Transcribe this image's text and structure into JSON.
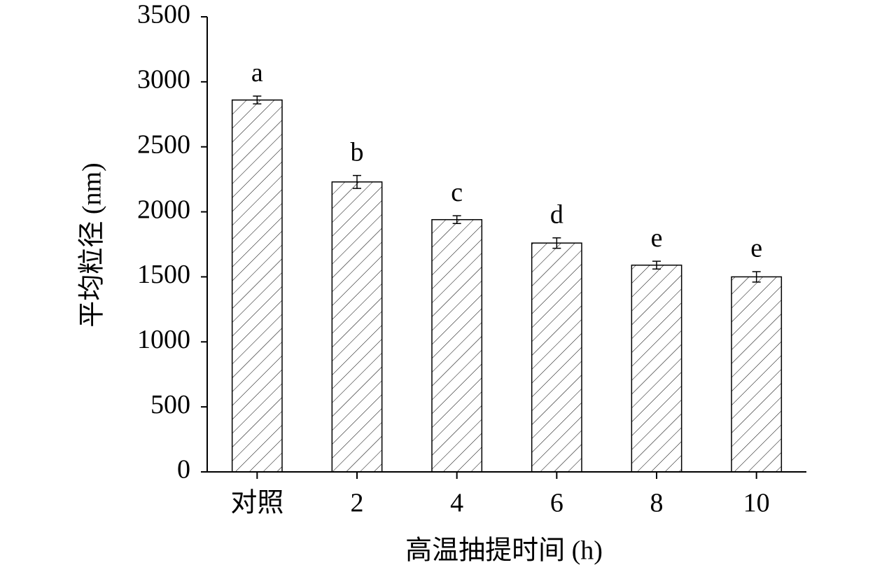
{
  "chart_data": {
    "type": "bar",
    "x_label": "高温抽提时间 (h)",
    "y_label": "平均粒径 (nm)",
    "categories": [
      "对照",
      "2",
      "4",
      "6",
      "8",
      "10"
    ],
    "values": [
      2860,
      2230,
      1940,
      1760,
      1590,
      1500
    ],
    "errors": [
      30,
      50,
      30,
      40,
      30,
      40
    ],
    "annotations": [
      "a",
      "b",
      "c",
      "d",
      "e",
      "e"
    ],
    "color": "#000000",
    "ylim": [
      0,
      3500
    ],
    "yticks": [
      0,
      500,
      1000,
      1500,
      2000,
      2500,
      3000,
      3500
    ],
    "grid": false
  }
}
